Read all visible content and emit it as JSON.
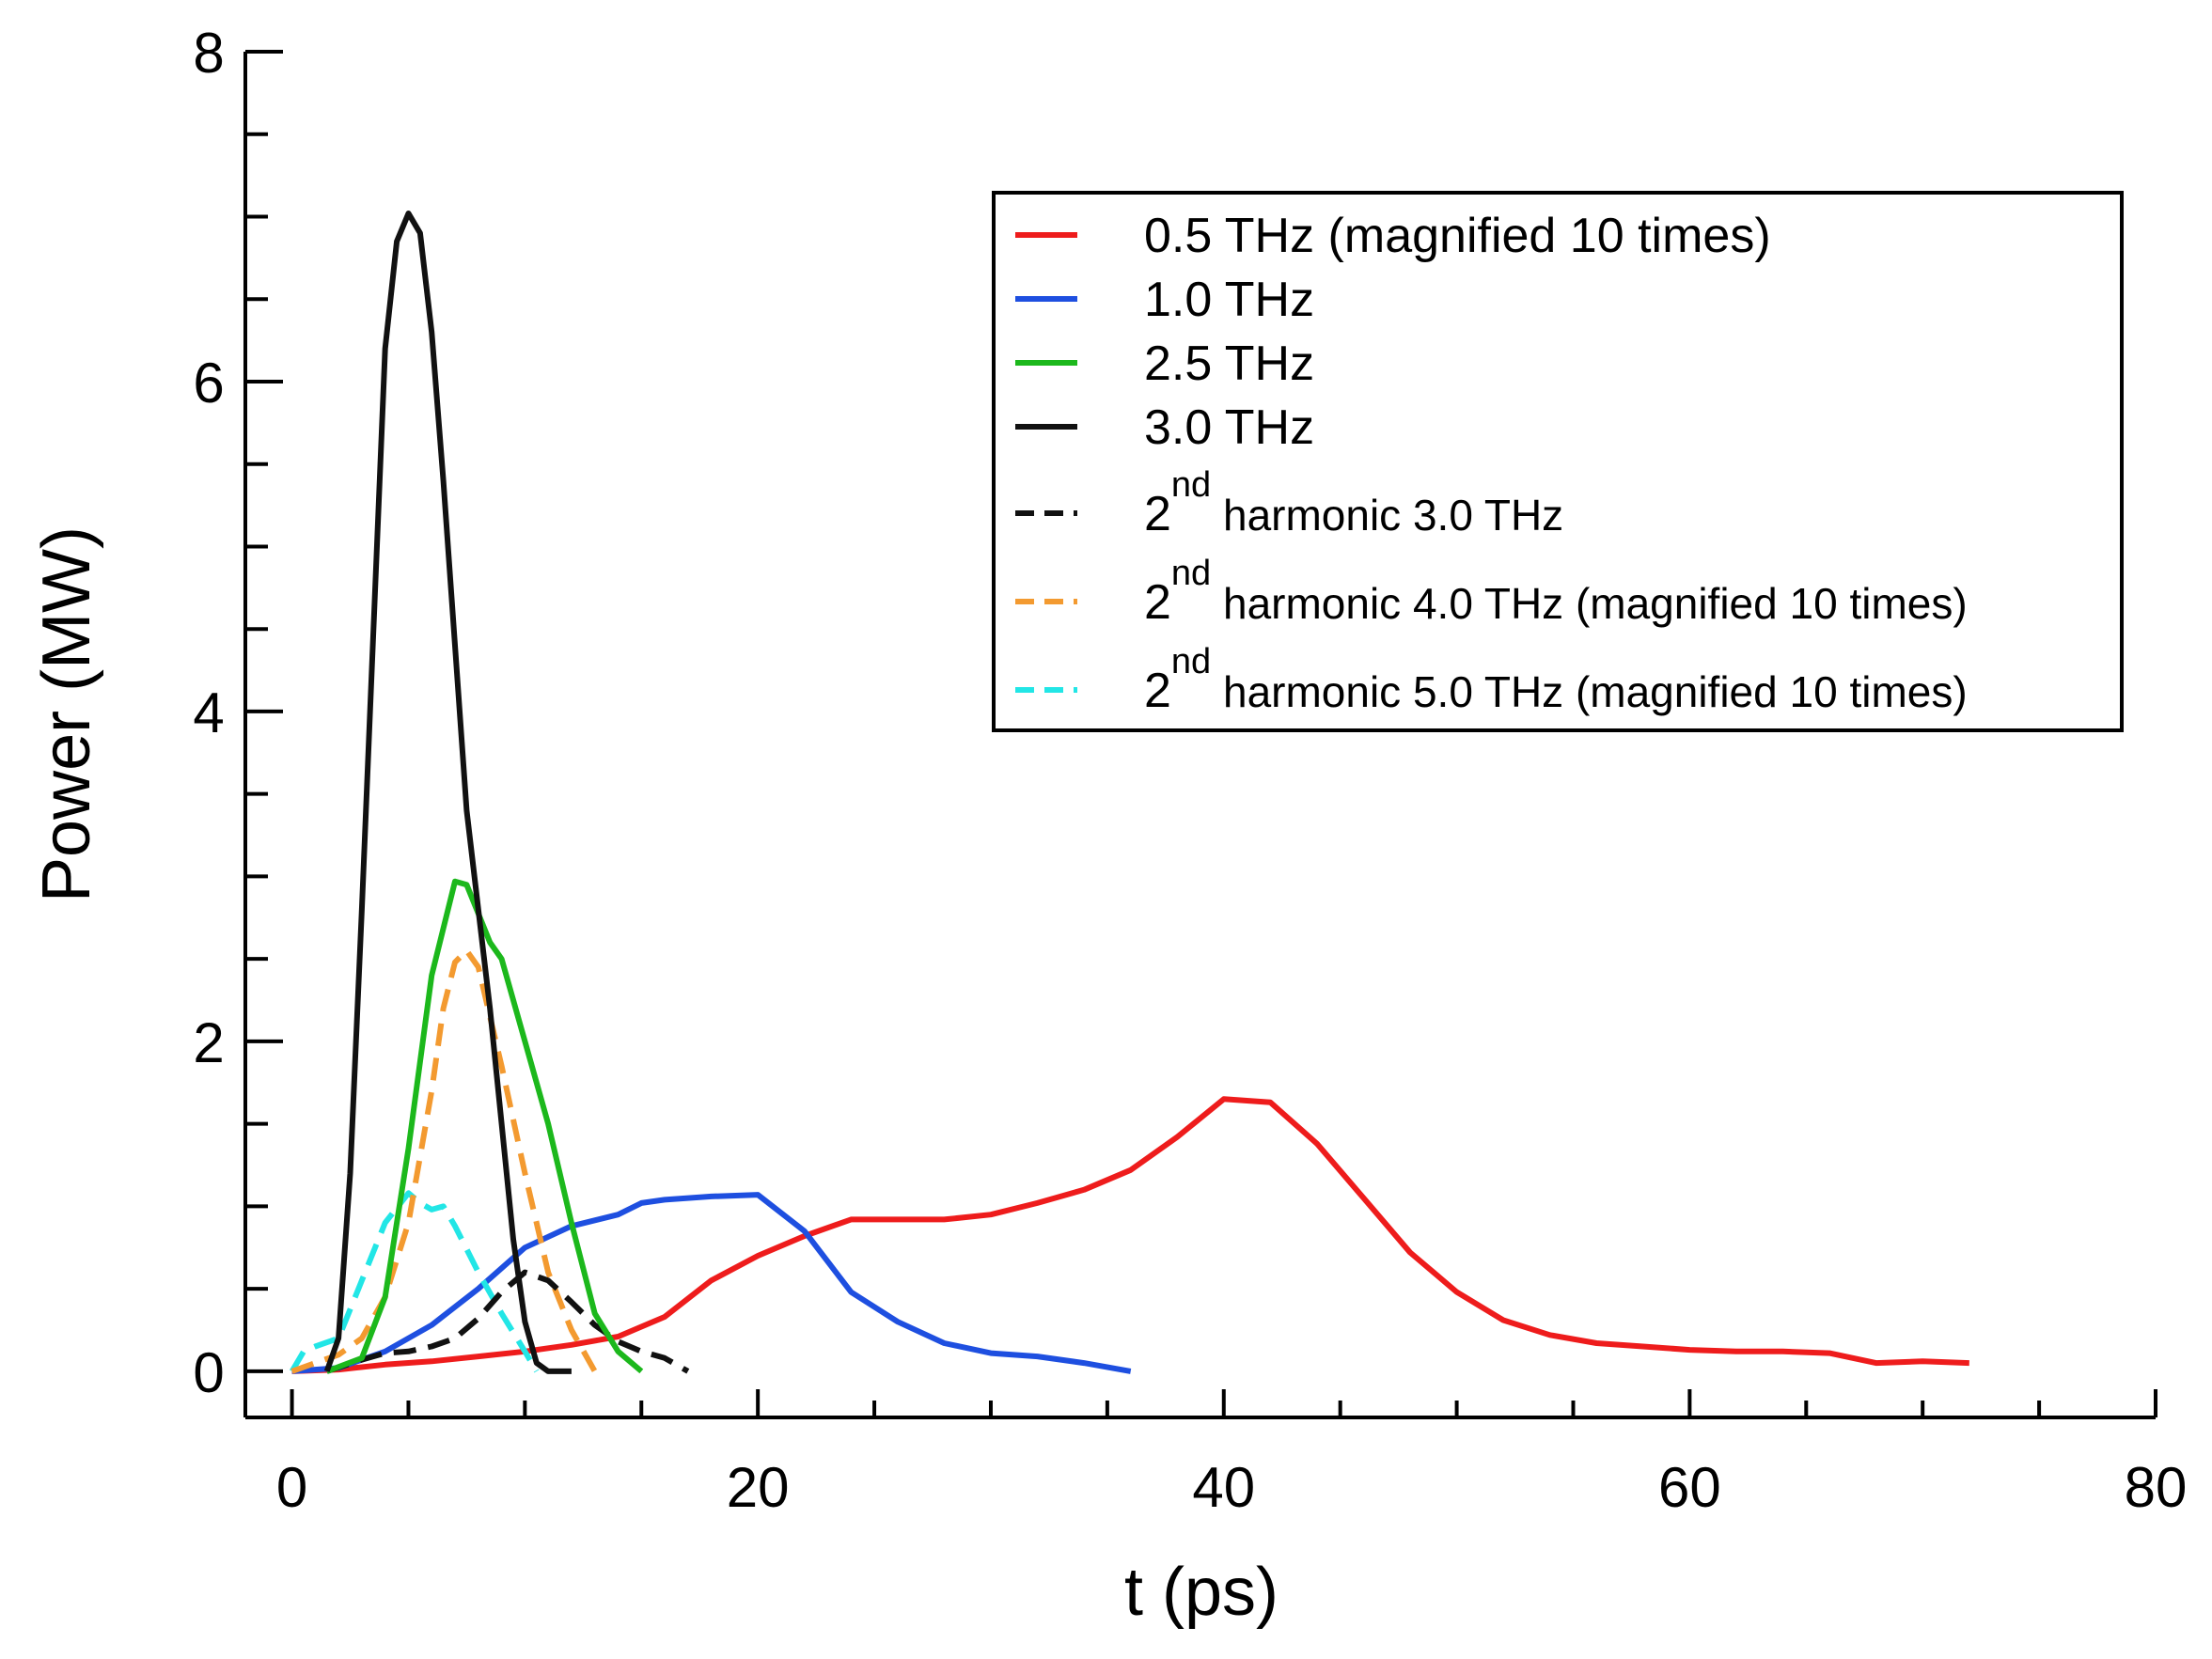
{
  "chart_data": {
    "type": "line",
    "title": "",
    "xlabel": "t (ps)",
    "ylabel": "Power (MW)",
    "xlim": [
      -2,
      80
    ],
    "ylim": [
      -0.28,
      8
    ],
    "xticks": [
      "0",
      "20",
      "40",
      "60",
      "80"
    ],
    "yticks": [
      "0",
      "2",
      "4",
      "6",
      "8"
    ],
    "legend_position": "top-right",
    "series": [
      {
        "name": "0.5 THz (magnified 10 times)",
        "color": "#ee1c1c",
        "dash": "solid",
        "x": [
          0,
          2,
          4,
          6,
          8,
          10,
          12,
          14,
          16,
          18,
          20,
          22,
          24,
          26,
          28,
          30,
          32,
          34,
          36,
          38,
          40,
          42,
          44,
          46,
          48,
          50,
          52,
          54,
          56,
          58,
          60,
          62,
          64,
          66,
          68,
          70,
          72
        ],
        "y": [
          0,
          0.01,
          0.04,
          0.06,
          0.09,
          0.12,
          0.16,
          0.21,
          0.33,
          0.55,
          0.7,
          0.82,
          0.92,
          0.92,
          0.92,
          0.95,
          1.02,
          1.1,
          1.22,
          1.42,
          1.65,
          1.63,
          1.38,
          1.05,
          0.72,
          0.48,
          0.31,
          0.22,
          0.17,
          0.15,
          0.13,
          0.12,
          0.12,
          0.11,
          0.05,
          0.06,
          0.05
        ]
      },
      {
        "name": "1.0 THz",
        "color": "#1e4fe0",
        "dash": "solid",
        "x": [
          0,
          2,
          4,
          6,
          8,
          10,
          12,
          14,
          15,
          16,
          18,
          20,
          22,
          24,
          26,
          28,
          30,
          32,
          34,
          36
        ],
        "y": [
          0,
          0.02,
          0.12,
          0.28,
          0.5,
          0.75,
          0.88,
          0.95,
          1.02,
          1.04,
          1.06,
          1.07,
          0.85,
          0.48,
          0.3,
          0.17,
          0.11,
          0.09,
          0.05,
          0
        ],
        "dense_x": true
      },
      {
        "name": "2.5 THz",
        "color": "#1cb81c",
        "dash": "solid",
        "x": [
          1.5,
          3,
          4,
          5,
          6,
          7,
          7.5,
          8.5,
          9,
          10,
          11,
          12,
          13,
          14,
          15
        ],
        "y": [
          0,
          0.08,
          0.45,
          1.35,
          2.4,
          2.97,
          2.95,
          2.6,
          2.5,
          2.0,
          1.5,
          0.9,
          0.35,
          0.12,
          0
        ]
      },
      {
        "name": "3.0 THz",
        "color": "#111111",
        "dash": "solid",
        "x": [
          1.5,
          2,
          2.5,
          3,
          3.5,
          4,
          4.5,
          5,
          5.5,
          6,
          6.5,
          7,
          7.5,
          8,
          8.5,
          9,
          9.5,
          10,
          10.5,
          11,
          12
        ],
        "y": [
          0,
          0.2,
          1.2,
          2.8,
          4.5,
          6.2,
          6.85,
          7.02,
          6.9,
          6.3,
          5.4,
          4.4,
          3.4,
          2.8,
          2.2,
          1.5,
          0.8,
          0.3,
          0.05,
          0,
          0
        ]
      },
      {
        "name": "2nd harmonic 3.0 THz",
        "color": "#111111",
        "dash": "dashed",
        "x": [
          1.5,
          3,
          4,
          5,
          6,
          7,
          8,
          9,
          10,
          11,
          12,
          13,
          14,
          15,
          16,
          17
        ],
        "y": [
          0,
          0.07,
          0.11,
          0.12,
          0.15,
          0.2,
          0.32,
          0.48,
          0.6,
          0.55,
          0.42,
          0.28,
          0.18,
          0.12,
          0.08,
          0
        ]
      },
      {
        "name": "2nd harmonic 4.0 THz (magnified 10 times)",
        "color": "#f39a30",
        "dash": "dashed",
        "x": [
          0,
          1,
          2,
          3,
          4,
          5,
          6,
          6.5,
          7,
          7.5,
          8,
          9,
          10,
          11,
          12,
          13
        ],
        "y": [
          0,
          0.05,
          0.1,
          0.2,
          0.45,
          0.9,
          1.7,
          2.2,
          2.48,
          2.55,
          2.45,
          1.85,
          1.2,
          0.6,
          0.25,
          0
        ]
      },
      {
        "name": "2nd harmonic 5.0 THz (magnified 10 times)",
        "color": "#22e6e6",
        "dash": "dashed",
        "x": [
          0,
          0.5,
          1,
          2,
          3,
          4,
          5,
          5.5,
          6,
          6.5,
          7,
          8,
          9,
          10,
          10.5
        ],
        "y": [
          0,
          0.12,
          0.15,
          0.2,
          0.55,
          0.9,
          1.08,
          1.02,
          0.98,
          1.0,
          0.88,
          0.6,
          0.35,
          0.12,
          0
        ]
      }
    ],
    "legend": [
      {
        "text": "0.5 THz (magnified 10 times)",
        "sup": "",
        "after": ""
      },
      {
        "text": "1.0 THz",
        "sup": "",
        "after": ""
      },
      {
        "text": "2.5 THz",
        "sup": "",
        "after": ""
      },
      {
        "text": "3.0 THz",
        "sup": "",
        "after": ""
      },
      {
        "text": "2",
        "sup": "nd",
        "after": " harmonic 3.0 THz"
      },
      {
        "text": "2",
        "sup": "nd",
        "after": " harmonic 4.0 THz (magnified 10 times)"
      },
      {
        "text": "2",
        "sup": "nd",
        "after": " harmonic 5.0 THz (magnified 10 times)"
      }
    ]
  }
}
